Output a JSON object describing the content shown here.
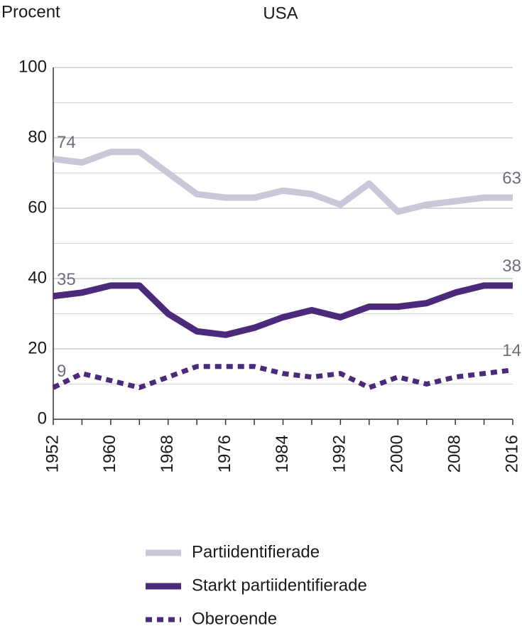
{
  "chart_data": {
    "type": "line",
    "title": "USA",
    "ylabel": "Procent",
    "x": [
      1952,
      1956,
      1960,
      1964,
      1968,
      1972,
      1976,
      1980,
      1984,
      1988,
      1992,
      1996,
      2000,
      2004,
      2008,
      2012,
      2016
    ],
    "series": [
      {
        "name": "Partiidentifierade",
        "color": "#cbc7d8",
        "style": "solid",
        "values": [
          74,
          73,
          76,
          76,
          70,
          64,
          63,
          63,
          65,
          64,
          61,
          67,
          59,
          61,
          62,
          63,
          63
        ]
      },
      {
        "name": "Starkt partiidentifierade",
        "color": "#4b2a7b",
        "style": "solid",
        "values": [
          35,
          36,
          38,
          38,
          30,
          25,
          24,
          26,
          29,
          31,
          29,
          32,
          32,
          33,
          36,
          38,
          38
        ]
      },
      {
        "name": "Oberoende",
        "color": "#4b2a7b",
        "style": "dotted",
        "values": [
          9,
          13,
          11,
          9,
          12,
          15,
          15,
          15,
          13,
          12,
          13,
          9,
          12,
          10,
          12,
          13,
          14
        ]
      }
    ],
    "xlim": [
      1952,
      2016
    ],
    "xticks": [
      1952,
      1960,
      1968,
      1976,
      1984,
      1992,
      2000,
      2008,
      2016
    ],
    "minor_xticks": [
      1956,
      1964,
      1972,
      1980,
      1988,
      1996,
      2004,
      2012
    ],
    "ylim": [
      0,
      100
    ],
    "yticks": [
      0,
      20,
      40,
      60,
      80,
      100
    ],
    "minor_yticks": [
      10,
      30,
      50,
      70,
      90
    ],
    "grid": true,
    "legend": "bottom"
  }
}
